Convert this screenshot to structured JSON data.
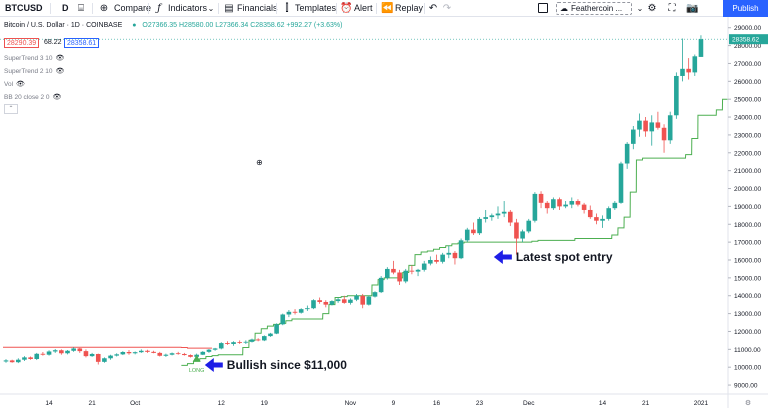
{
  "toolbar": {
    "symbol": "BTCUSD",
    "interval": "D",
    "compare": "Compare",
    "indicators": "Indicators",
    "financials": "Financials",
    "templates": "Templates",
    "alert": "Alert",
    "replay": "Replay",
    "layout_name": "Feathercoin ...",
    "publish": "Publish"
  },
  "legend": {
    "title": "Bitcoin / U.S. Dollar · 1D · COINBASE",
    "ohlc": "O27366.35 H28580.00 L27366.34 C28358.62 +992.27 (+3.63%)",
    "bid": "28290.39",
    "spread": "68.22",
    "ask": "28358.61",
    "indicators": [
      "SuperTrend 3 10",
      "SuperTrend 2 10",
      "Vol",
      "BB 20 close 2 0"
    ]
  },
  "annotations": {
    "latest_entry": "Latest spot entry",
    "bullish": "Bullish since $11,000",
    "long_label": "LONG"
  },
  "colors": {
    "up": "#26a69a",
    "down": "#ef5350",
    "supertrend_up": "#4caf50",
    "supertrend_down": "#ef5350",
    "arrow": "#1e1ee6",
    "publish": "#2962ff"
  },
  "chart_data": {
    "type": "candlestick",
    "ylim": [
      8500,
      29600
    ],
    "y_ticks": [
      "9000.00",
      "10000.00",
      "11000.00",
      "12000.00",
      "13000.00",
      "14000.00",
      "15000.00",
      "16000.00",
      "17000.00",
      "18000.00",
      "19000.00",
      "20000.00",
      "21000.00",
      "22000.00",
      "23000.00",
      "24000.00",
      "25000.00",
      "26000.00",
      "27000.00",
      "28000.00",
      "29000.00"
    ],
    "last_price": "28358.62",
    "x_ticks": [
      "14",
      "21",
      "Oct",
      "12",
      "19",
      "Nov",
      "9",
      "16",
      "23",
      "Dec",
      "14",
      "21",
      "2021"
    ],
    "candles": [
      [
        10320,
        10450,
        10250,
        10380
      ],
      [
        10380,
        10420,
        10250,
        10280
      ],
      [
        10280,
        10500,
        10230,
        10420
      ],
      [
        10420,
        10620,
        10350,
        10550
      ],
      [
        10550,
        10600,
        10420,
        10460
      ],
      [
        10460,
        10800,
        10400,
        10750
      ],
      [
        10750,
        10850,
        10650,
        10700
      ],
      [
        10700,
        10950,
        10650,
        10880
      ],
      [
        10880,
        11020,
        10800,
        10950
      ],
      [
        10950,
        11000,
        10700,
        10780
      ],
      [
        10780,
        10960,
        10720,
        10920
      ],
      [
        10920,
        11120,
        10860,
        11050
      ],
      [
        11050,
        11080,
        10800,
        10900
      ],
      [
        10900,
        11000,
        10550,
        10620
      ],
      [
        10620,
        10800,
        10580,
        10740
      ],
      [
        10740,
        10760,
        10150,
        10300
      ],
      [
        10300,
        10550,
        10250,
        10500
      ],
      [
        10500,
        10700,
        10420,
        10650
      ],
      [
        10650,
        10780,
        10600,
        10720
      ],
      [
        10720,
        10900,
        10680,
        10850
      ],
      [
        10850,
        10960,
        10700,
        10780
      ],
      [
        10780,
        10880,
        10720,
        10840
      ],
      [
        10840,
        11000,
        10800,
        10920
      ],
      [
        10920,
        10980,
        10800,
        10860
      ],
      [
        10860,
        10920,
        10780,
        10800
      ],
      [
        10800,
        10860,
        10600,
        10640
      ],
      [
        10640,
        10760,
        10580,
        10700
      ],
      [
        10700,
        10820,
        10660,
        10780
      ],
      [
        10780,
        10860,
        10700,
        10740
      ],
      [
        10740,
        10800,
        10650,
        10680
      ],
      [
        10680,
        10720,
        10540,
        10580
      ],
      [
        10580,
        10760,
        10520,
        10700
      ],
      [
        10700,
        10900,
        10680,
        10860
      ],
      [
        10860,
        11020,
        10800,
        10980
      ],
      [
        10980,
        11080,
        10920,
        11050
      ],
      [
        11050,
        11400,
        11000,
        11350
      ],
      [
        11350,
        11450,
        11250,
        11300
      ],
      [
        11300,
        11450,
        11200,
        11400
      ],
      [
        11400,
        11500,
        11300,
        11380
      ],
      [
        11380,
        11500,
        11300,
        11420
      ],
      [
        11420,
        11600,
        11380,
        11550
      ],
      [
        11550,
        11620,
        11450,
        11500
      ],
      [
        11500,
        11780,
        11460,
        11740
      ],
      [
        11740,
        11920,
        11700,
        11880
      ],
      [
        11880,
        12450,
        11850,
        12400
      ],
      [
        12400,
        13000,
        12350,
        12950
      ],
      [
        12950,
        13200,
        12800,
        13100
      ],
      [
        13100,
        13250,
        12950,
        13050
      ],
      [
        13050,
        13300,
        13000,
        13250
      ],
      [
        13250,
        13450,
        13150,
        13300
      ],
      [
        13300,
        13800,
        13250,
        13750
      ],
      [
        13750,
        13900,
        13550,
        13650
      ],
      [
        13650,
        13750,
        13350,
        13500
      ],
      [
        13500,
        13750,
        13450,
        13700
      ],
      [
        13700,
        13900,
        13600,
        13800
      ],
      [
        13800,
        14000,
        13550,
        13600
      ],
      [
        13600,
        13850,
        13500,
        13780
      ],
      [
        13780,
        14100,
        13700,
        14000
      ],
      [
        14000,
        14100,
        13300,
        13500
      ],
      [
        13500,
        14000,
        13450,
        13950
      ],
      [
        13950,
        14250,
        13900,
        14200
      ],
      [
        14200,
        15100,
        14150,
        15000
      ],
      [
        15000,
        15600,
        14900,
        15500
      ],
      [
        15500,
        15950,
        15200,
        15300
      ],
      [
        15300,
        15450,
        14600,
        14800
      ],
      [
        14800,
        15500,
        14700,
        15400
      ],
      [
        15400,
        15700,
        15200,
        15350
      ],
      [
        15350,
        15500,
        15100,
        15450
      ],
      [
        15450,
        15950,
        15350,
        15800
      ],
      [
        15800,
        16200,
        15700,
        16000
      ],
      [
        16000,
        16300,
        15800,
        15900
      ],
      [
        15900,
        16400,
        15800,
        16300
      ],
      [
        16300,
        16800,
        16100,
        16400
      ],
      [
        16400,
        16500,
        15750,
        16100
      ],
      [
        16100,
        17200,
        16050,
        17100
      ],
      [
        17100,
        17800,
        17000,
        17700
      ],
      [
        17700,
        18100,
        17400,
        17500
      ],
      [
        17500,
        18400,
        17400,
        18300
      ],
      [
        18300,
        18800,
        18100,
        18400
      ],
      [
        18400,
        18600,
        18200,
        18500
      ],
      [
        18500,
        19000,
        18300,
        18600
      ],
      [
        18600,
        19300,
        18400,
        18700
      ],
      [
        18700,
        18800,
        17900,
        18100
      ],
      [
        18100,
        18300,
        16300,
        17200
      ],
      [
        17200,
        17700,
        17000,
        17600
      ],
      [
        17600,
        18300,
        17500,
        18200
      ],
      [
        18200,
        19800,
        18100,
        19700
      ],
      [
        19700,
        19850,
        18900,
        19200
      ],
      [
        19200,
        19300,
        18600,
        18900
      ],
      [
        18900,
        19500,
        18800,
        19400
      ],
      [
        19400,
        19500,
        18800,
        19000
      ],
      [
        19000,
        19300,
        18900,
        19100
      ],
      [
        19100,
        19500,
        18900,
        19300
      ],
      [
        19300,
        19400,
        19000,
        19100
      ],
      [
        19100,
        19200,
        18600,
        18800
      ],
      [
        18800,
        19050,
        18300,
        18400
      ],
      [
        18400,
        18600,
        18000,
        18200
      ],
      [
        18200,
        18500,
        17800,
        18300
      ],
      [
        18300,
        19000,
        18200,
        18900
      ],
      [
        18900,
        19300,
        18800,
        19200
      ],
      [
        19200,
        21500,
        19150,
        21400
      ],
      [
        21400,
        22600,
        21100,
        22500
      ],
      [
        22500,
        23500,
        22200,
        23300
      ],
      [
        23300,
        24200,
        22900,
        23800
      ],
      [
        23800,
        24000,
        22900,
        23200
      ],
      [
        23200,
        24100,
        22400,
        23700
      ],
      [
        23700,
        24300,
        23300,
        23400
      ],
      [
        23400,
        23600,
        22000,
        22700
      ],
      [
        22700,
        24300,
        22500,
        24100
      ],
      [
        24100,
        26500,
        23900,
        26300
      ],
      [
        26300,
        28400,
        26000,
        26700
      ],
      [
        26700,
        27300,
        26100,
        26500
      ],
      [
        26500,
        27500,
        26300,
        27400
      ],
      [
        27366.35,
        28580,
        27366.34,
        28358.62
      ]
    ],
    "supertrend_down": [
      11120,
      11120,
      11120,
      11120,
      11120,
      11120,
      11120,
      11120,
      11120,
      11120,
      11120,
      11120,
      11120,
      11120,
      11120,
      11120,
      11120,
      11120,
      11120,
      11120,
      11120,
      11120,
      11120,
      11120,
      11120,
      11120,
      11120,
      11120,
      11120,
      11100,
      11070,
      11070,
      11070,
      11070
    ],
    "supertrend_up": [
      10100,
      10200,
      10350,
      10480,
      10600,
      10650,
      10700,
      10700,
      10700,
      10700,
      11100,
      11500,
      11900,
      12150,
      12300,
      12400,
      12450,
      12600,
      12700,
      12700,
      12700,
      12700,
      12700,
      13000,
      13500,
      13900,
      13950,
      14000,
      14000,
      14000,
      14000,
      14600,
      14900,
      15000,
      15000,
      15000,
      15300,
      15700,
      16300,
      16450,
      16500,
      16600,
      16700,
      16800,
      16900,
      16950,
      17000,
      17000,
      17000,
      17000,
      17000,
      17000,
      17000,
      17000,
      17000,
      17000,
      17000,
      17050,
      17100,
      17100,
      17100,
      17100,
      17100,
      17100,
      17200,
      17200,
      17200,
      17200,
      17200,
      17200,
      17400,
      17800,
      18400,
      19800,
      21600,
      21700,
      21700,
      21700,
      21700,
      21700,
      21700,
      21700,
      21900,
      22800,
      24100,
      24100,
      24100,
      24400,
      25000
    ]
  }
}
